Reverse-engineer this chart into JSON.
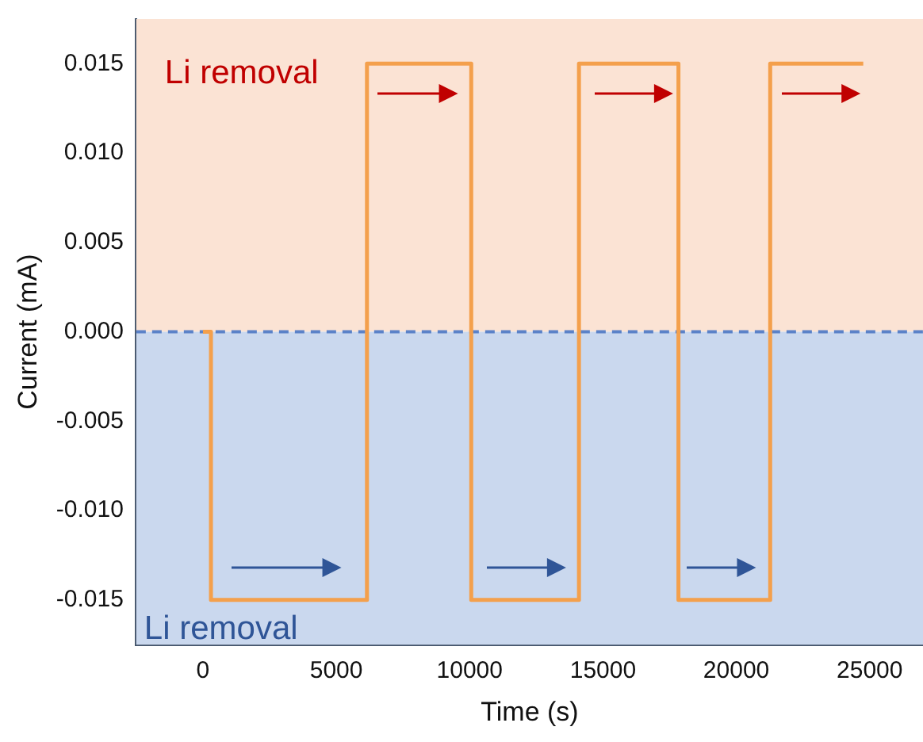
{
  "chart_data": {
    "type": "step",
    "xlabel": "Time (s)",
    "ylabel": "Current (mA)",
    "x": [
      0,
      300,
      6150,
      10060,
      14100,
      17830,
      21270,
      24760
    ],
    "series": [
      {
        "color": "#f4a04c",
        "values": [
          0,
          -0.015,
          0.015,
          -0.015,
          0.015,
          -0.015,
          0.015,
          0.015
        ]
      }
    ],
    "xlim": [
      -2500,
      27000
    ],
    "xticks": [
      0,
      5000,
      10000,
      15000,
      20000,
      25000
    ],
    "ylim": [
      -0.0175,
      0.0175
    ],
    "yticks": [
      {
        "value": -0.015,
        "label": "-0.015"
      },
      {
        "value": -0.01,
        "label": "-0.010"
      },
      {
        "value": -0.005,
        "label": "-0.005"
      },
      {
        "value": 0,
        "label": "0.000"
      },
      {
        "value": 0.005,
        "label": "0.005"
      },
      {
        "value": 0.01,
        "label": "0.010"
      },
      {
        "value": 0.015,
        "label": "0.015"
      }
    ],
    "bands": [
      {
        "axis": "y",
        "from": 0,
        "to": 0.0175,
        "label": "Li removal",
        "color": "#fbe3d4"
      },
      {
        "axis": "y",
        "from": -0.0175,
        "to": 0,
        "label": "Li removal",
        "color": "#cad8ee"
      }
    ],
    "ref_lines": [
      {
        "axis": "y",
        "value": 0,
        "color": "#5b82c8",
        "line_style": "dashed"
      }
    ],
    "grid": false,
    "legend": false,
    "marker": "none",
    "line_style": "solid"
  }
}
